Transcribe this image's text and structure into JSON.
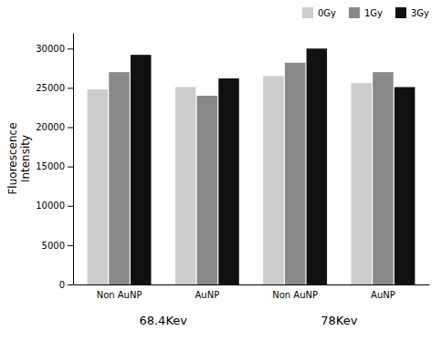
{
  "chart_data": {
    "type": "bar",
    "categories": [
      "Non AuNP",
      "AuNP",
      "Non AuNP",
      "AuNP"
    ],
    "series": [
      {
        "name": "0Gy",
        "color": "#cccccc",
        "values": [
          24800,
          25100,
          26500,
          25600
        ]
      },
      {
        "name": "1Gy",
        "color": "#888888",
        "values": [
          27000,
          24000,
          28200,
          27000
        ]
      },
      {
        "name": "3Gy",
        "color": "#111111",
        "values": [
          29200,
          26200,
          30000,
          25100
        ]
      }
    ],
    "ylabel": "Fluorescence\nIntensity",
    "annotations": [
      "68.4Kev",
      "78Kev"
    ],
    "ylim": [
      0,
      32000
    ],
    "yticks": [
      0,
      5000,
      10000,
      15000,
      20000,
      25000,
      30000
    ],
    "grid": false,
    "legend": "upper right"
  }
}
